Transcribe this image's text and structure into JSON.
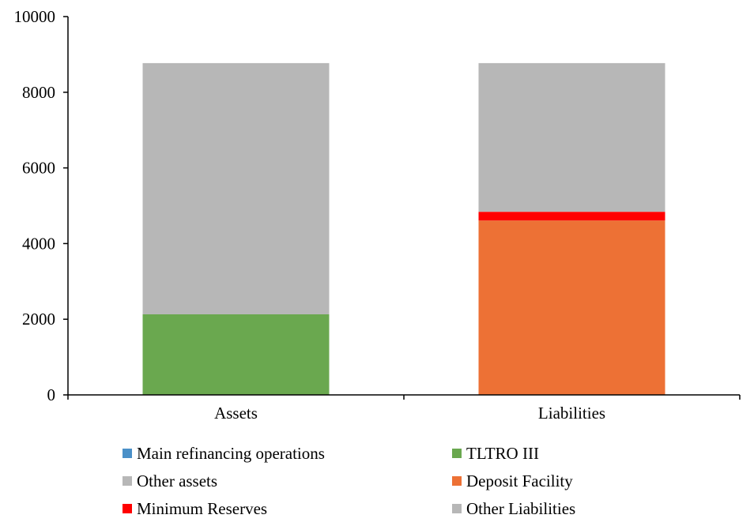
{
  "chart_data": {
    "type": "bar",
    "stacked": true,
    "categories": [
      "Assets",
      "Liabilities"
    ],
    "ylim": [
      0,
      10000
    ],
    "yticks": [
      0,
      2000,
      4000,
      6000,
      8000,
      10000
    ],
    "grid": false,
    "legend_position": "bottom",
    "series": [
      {
        "name": "Main refinancing operations",
        "color": "#4a90c8",
        "values": [
          0,
          0
        ]
      },
      {
        "name": "TLTRO III",
        "color": "#6aa84f",
        "values": [
          2130,
          0
        ]
      },
      {
        "name": "Other assets",
        "color": "#b7b7b7",
        "values": [
          6640,
          0
        ]
      },
      {
        "name": "Deposit Facility",
        "color": "#ed7135",
        "values": [
          0,
          4610
        ]
      },
      {
        "name": "Minimum Reserves",
        "color": "#ff0000",
        "values": [
          0,
          230
        ]
      },
      {
        "name": "Other Liabilities",
        "color": "#b7b7b7",
        "values": [
          0,
          3930
        ]
      }
    ]
  }
}
